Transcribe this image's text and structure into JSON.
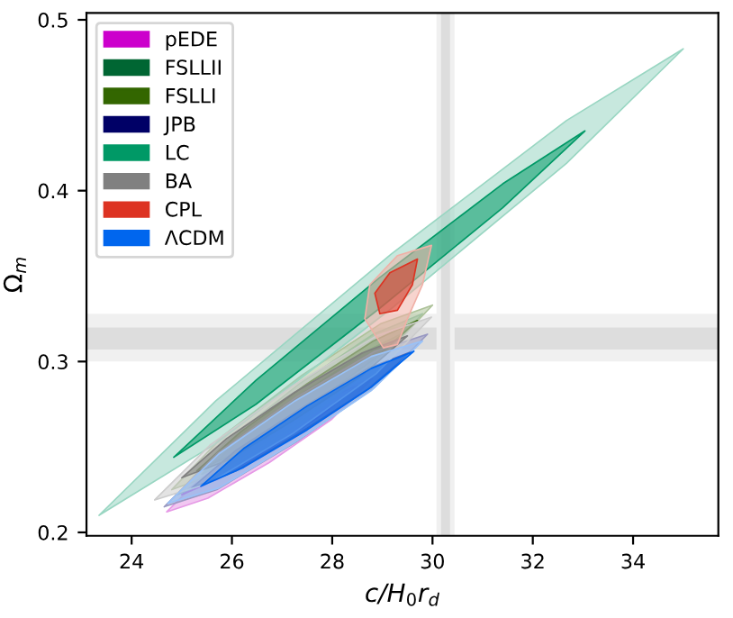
{
  "chart_data": {
    "type": "area",
    "xlabel": "c/H$_{0}$r$_{d}$",
    "ylabel": "Ω$_{m}$",
    "xlim": [
      23.1,
      35.7
    ],
    "ylim": [
      0.198,
      0.504
    ],
    "xticks": [
      24,
      26,
      28,
      30,
      32,
      34
    ],
    "yticks": [
      0.2,
      0.3,
      0.4,
      0.5
    ],
    "grid": false,
    "legend": "top left",
    "bands": [
      {
        "axis": "y",
        "from": 0.3,
        "to": 0.328,
        "color": "#f0f0f0"
      },
      {
        "axis": "y",
        "from": 0.307,
        "to": 0.32,
        "color": "#dddddd"
      },
      {
        "axis": "x",
        "from": 30.08,
        "to": 30.44,
        "color": "#f0f0f0"
      },
      {
        "axis": "x",
        "from": 30.17,
        "to": 30.35,
        "color": "#dddddd"
      }
    ],
    "series": [
      {
        "color": "#e699e6",
        "x": [
          24.7,
          25.52,
          26.75,
          27.98,
          28.8,
          27.98,
          26.75,
          25.52
        ],
        "values": [
          0.212,
          0.236,
          0.261,
          0.282,
          0.29,
          0.266,
          0.241,
          0.22
        ]
      },
      {
        "name": "pEDE",
        "color": "#cc00cc",
        "x": [
          25.0,
          25.7,
          26.75,
          27.8,
          28.5,
          27.8,
          26.75,
          25.7
        ],
        "values": [
          0.222,
          0.239,
          0.259,
          0.277,
          0.286,
          0.269,
          0.249,
          0.231
        ]
      },
      {
        "color": "#99c2ad",
        "x": [
          24.9,
          25.88,
          27.35,
          28.82,
          29.8,
          28.82,
          27.35,
          25.88
        ],
        "values": [
          0.222,
          0.253,
          0.287,
          0.316,
          0.328,
          0.297,
          0.263,
          0.234
        ]
      },
      {
        "name": "FSLLII",
        "color": "#006633",
        "x": [
          25.4,
          26.22,
          27.45,
          28.68,
          29.5,
          28.68,
          27.45,
          26.22
        ],
        "values": [
          0.234,
          0.256,
          0.282,
          0.306,
          0.318,
          0.296,
          0.27,
          0.246
        ]
      },
      {
        "color": "#adc299",
        "x": [
          24.8,
          25.84,
          27.4,
          28.96,
          30.0,
          28.96,
          27.4,
          25.84
        ],
        "values": [
          0.225,
          0.257,
          0.292,
          0.322,
          0.333,
          0.301,
          0.266,
          0.236
        ]
      },
      {
        "name": "FSLLI",
        "color": "#336600",
        "x": [
          25.3,
          26.18,
          27.5,
          28.82,
          29.7,
          28.82,
          27.5,
          26.18
        ],
        "values": [
          0.236,
          0.259,
          0.287,
          0.312,
          0.324,
          0.301,
          0.273,
          0.248
        ]
      },
      {
        "color": "#9999c2",
        "x": [
          24.65,
          25.7,
          27.28,
          28.85,
          29.9,
          28.85,
          27.28,
          25.7
        ],
        "values": [
          0.215,
          0.246,
          0.279,
          0.306,
          0.316,
          0.285,
          0.253,
          0.225
        ]
      },
      {
        "name": "JPB",
        "color": "#000066",
        "x": [
          25.2,
          26.08,
          27.4,
          28.72,
          29.6,
          28.72,
          27.4,
          26.08
        ],
        "values": [
          0.226,
          0.248,
          0.273,
          0.296,
          0.306,
          0.284,
          0.259,
          0.236
        ]
      },
      {
        "color": "#99d6c2",
        "x": [
          23.35,
          25.68,
          29.18,
          32.67,
          35.0,
          32.67,
          29.18,
          25.68
        ],
        "values": [
          0.21,
          0.277,
          0.363,
          0.441,
          0.483,
          0.416,
          0.331,
          0.252
        ]
      },
      {
        "name": "LC",
        "color": "#009966",
        "x": [
          24.84,
          26.48,
          28.94,
          31.4,
          33.04,
          31.4,
          28.94,
          26.48
        ],
        "values": [
          0.244,
          0.289,
          0.349,
          0.404,
          0.435,
          0.39,
          0.331,
          0.275
        ]
      },
      {
        "color": "#cccccc",
        "x": [
          24.46,
          25.56,
          27.22,
          28.88,
          29.98,
          28.88,
          27.22,
          25.56
        ],
        "values": [
          0.219,
          0.251,
          0.286,
          0.315,
          0.326,
          0.293,
          0.258,
          0.229
        ]
      },
      {
        "name": "BA",
        "color": "#808080",
        "x": [
          25.0,
          25.9,
          27.25,
          28.6,
          29.5,
          28.6,
          27.25,
          25.9
        ],
        "values": [
          0.232,
          0.255,
          0.282,
          0.305,
          0.315,
          0.292,
          0.266,
          0.242
        ]
      },
      {
        "color": "#f0b0a6",
        "x": [
          29.02,
          28.65,
          28.75,
          29.3,
          29.98,
          29.8,
          29.5,
          29.3
        ],
        "values": [
          0.308,
          0.325,
          0.345,
          0.362,
          0.368,
          0.345,
          0.325,
          0.31
        ]
      },
      {
        "name": "CPL",
        "color": "#dd3322",
        "x": [
          28.95,
          28.85,
          29.15,
          29.7,
          29.6,
          29.3
        ],
        "values": [
          0.328,
          0.34,
          0.352,
          0.36,
          0.345,
          0.33
        ]
      },
      {
        "color": "#99c2f8",
        "x": [
          24.72,
          25.74,
          27.26,
          28.78,
          29.8,
          28.78,
          27.26,
          25.74
        ],
        "values": [
          0.217,
          0.246,
          0.277,
          0.303,
          0.312,
          0.283,
          0.253,
          0.226
        ]
      },
      {
        "name": "ΛCDM",
        "color": "#0066ee",
        "x": [
          25.38,
          26.23,
          27.5,
          28.78,
          29.63,
          28.78,
          27.5,
          26.23
        ],
        "values": [
          0.227,
          0.249,
          0.274,
          0.296,
          0.306,
          0.285,
          0.26,
          0.238
        ]
      }
    ]
  }
}
